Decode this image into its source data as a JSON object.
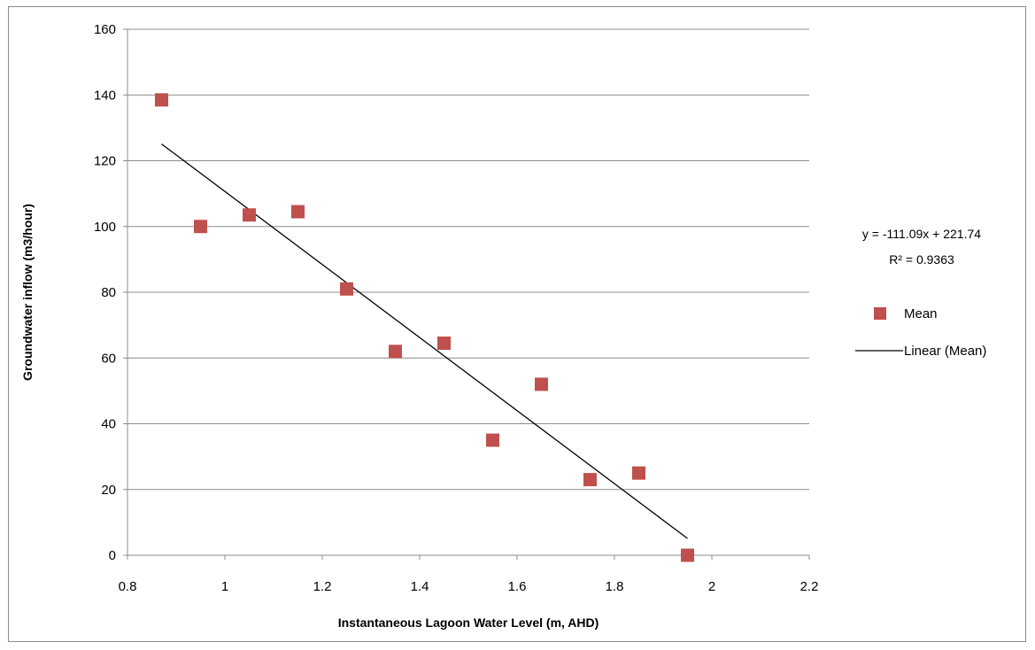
{
  "chart_data": {
    "type": "scatter",
    "title": "",
    "xlabel": "Instantaneous Lagoon Water Level (m, AHD)",
    "ylabel": "Groundwater inflow (m3/hour)",
    "xlim": [
      0.8,
      2.2
    ],
    "ylim": [
      0,
      160
    ],
    "x_ticks": [
      "0.8",
      "1",
      "1.2",
      "1.4",
      "1.6",
      "1.8",
      "2",
      "2.2"
    ],
    "y_ticks": [
      "0",
      "20",
      "40",
      "60",
      "80",
      "100",
      "120",
      "140",
      "160"
    ],
    "grid": "horizontal",
    "legend_position": "right",
    "series": [
      {
        "name": "Mean",
        "marker": "square",
        "color": "#c0504d",
        "points": [
          {
            "x": 0.87,
            "y": 138.5
          },
          {
            "x": 0.95,
            "y": 100
          },
          {
            "x": 1.05,
            "y": 103.5
          },
          {
            "x": 1.15,
            "y": 104.5
          },
          {
            "x": 1.25,
            "y": 81
          },
          {
            "x": 1.35,
            "y": 62
          },
          {
            "x": 1.45,
            "y": 64.5
          },
          {
            "x": 1.55,
            "y": 35
          },
          {
            "x": 1.65,
            "y": 52
          },
          {
            "x": 1.75,
            "y": 23
          },
          {
            "x": 1.85,
            "y": 25
          },
          {
            "x": 1.95,
            "y": 0
          }
        ]
      }
    ],
    "trendline": {
      "name": "Linear (Mean)",
      "slope": -111.09,
      "intercept": 221.74,
      "x_start": 0.87,
      "x_end": 1.95,
      "color": "#000000",
      "equation": "y = -111.09x + 221.74",
      "r_squared": "R² = 0.9363"
    }
  }
}
